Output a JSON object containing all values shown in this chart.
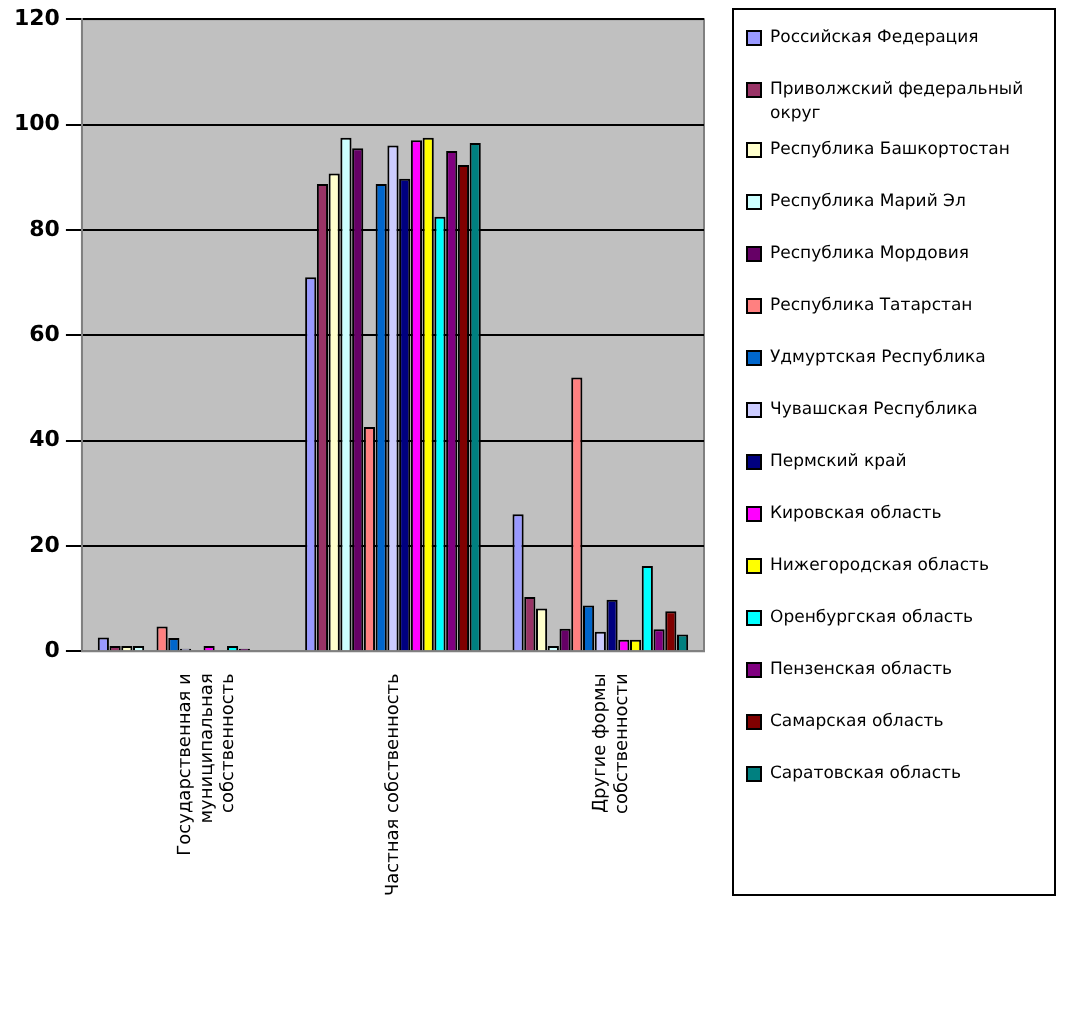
{
  "chart_data": {
    "type": "bar",
    "categories": [
      "Государственная и муниципальная собственность",
      "Частная собственность",
      "Другие формы собственности"
    ],
    "series": [
      {
        "name": "Российская Федерация",
        "color": "#9999ff",
        "values": [
          2.6,
          71,
          26
        ]
      },
      {
        "name": "Приволжский федеральный округ",
        "color": "#993366",
        "values": [
          1,
          88.7,
          10.3
        ]
      },
      {
        "name": "Республика Башкортостан",
        "color": "#ffffcc",
        "values": [
          1,
          90.7,
          8.1
        ]
      },
      {
        "name": "Республика Марий Эл",
        "color": "#ccffff",
        "values": [
          1,
          97.5,
          1
        ]
      },
      {
        "name": "Республика Мордовия",
        "color": "#660066",
        "values": [
          0,
          95.5,
          4.3
        ]
      },
      {
        "name": "Республика Татарстан",
        "color": "#ff8080",
        "values": [
          4.7,
          42.6,
          52
        ]
      },
      {
        "name": "Удмуртская Республика",
        "color": "#0066cc",
        "values": [
          2.5,
          88.7,
          8.7
        ]
      },
      {
        "name": "Чувашская Республика",
        "color": "#ccccff",
        "values": [
          0.5,
          96,
          3.7
        ]
      },
      {
        "name": "Пермский край",
        "color": "#000080",
        "values": [
          0,
          89.7,
          9.8
        ]
      },
      {
        "name": "Кировская область",
        "color": "#ff00ff",
        "values": [
          1,
          97,
          2.2
        ]
      },
      {
        "name": "Нижегородская область",
        "color": "#ffff00",
        "values": [
          null,
          97.5,
          2.2
        ]
      },
      {
        "name": "Оренбургская область",
        "color": "#00ffff",
        "values": [
          1,
          82.5,
          16.2
        ]
      },
      {
        "name": "Пензенская область",
        "color": "#800080",
        "values": [
          0.5,
          95,
          4.2
        ]
      },
      {
        "name": "Самарская область",
        "color": "#800000",
        "values": [
          0,
          92.3,
          7.6
        ]
      },
      {
        "name": "Саратовская область",
        "color": "#008080",
        "values": [
          0,
          96.5,
          3.2
        ]
      }
    ],
    "ylim": [
      0,
      120
    ],
    "yticks": [
      0,
      20,
      40,
      60,
      80,
      100,
      120
    ],
    "grid": "y",
    "legend": "right"
  }
}
